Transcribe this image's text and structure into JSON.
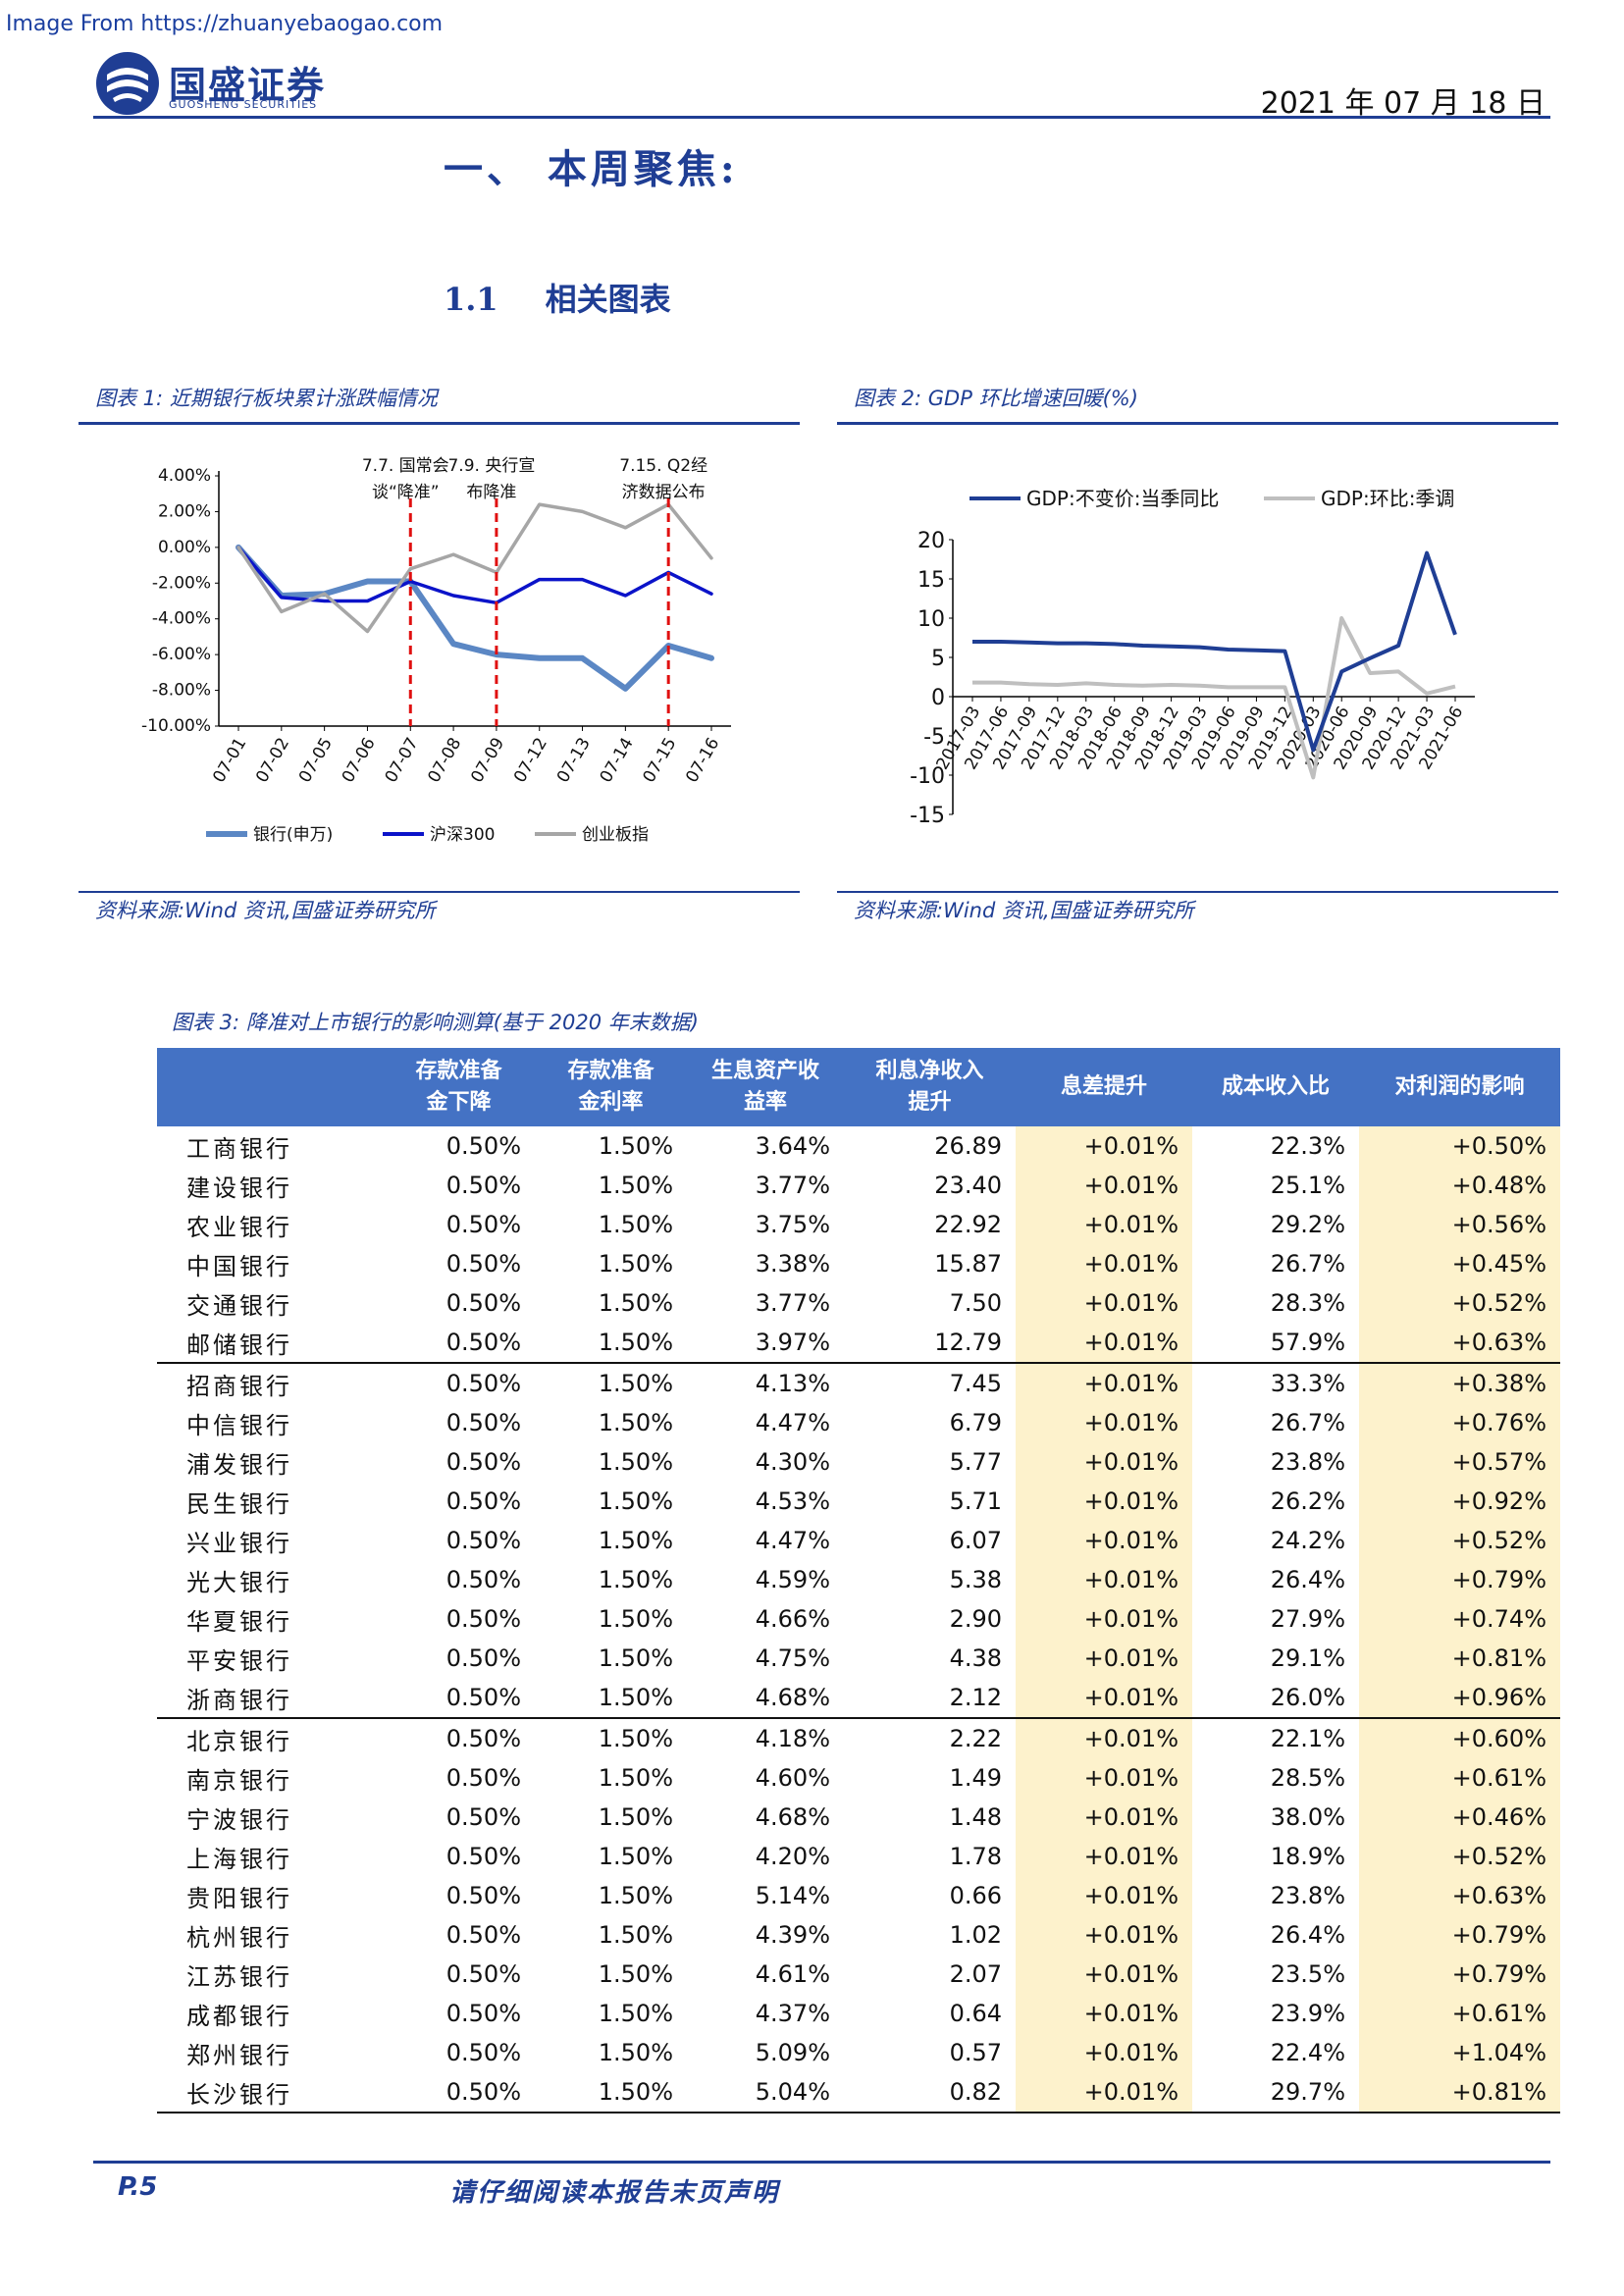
{
  "header": {
    "watermark": "Image From https://zhuanyebaogao.com",
    "brand_cn": "国盛证券",
    "brand_en": "GUOSHENG SECURITIES",
    "date": "2021 年 07 月 18 日"
  },
  "section": {
    "h1": "一、 本周聚焦:",
    "h2_num": "1.1",
    "h2_text": "相关图表"
  },
  "fig1": {
    "title": "图表 1:  近期银行板块累计涨跌幅情况",
    "source": "资料来源:Wind 资讯,国盛证券研究所",
    "chart_data": {
      "type": "line",
      "categories": [
        "07-01",
        "07-02",
        "07-05",
        "07-06",
        "07-07",
        "07-08",
        "07-09",
        "07-12",
        "07-13",
        "07-14",
        "07-15",
        "07-16"
      ],
      "series": [
        {
          "name": "银行(申万)",
          "color": "#5b87c4",
          "values": [
            0.0,
            -2.7,
            -2.6,
            -1.9,
            -1.9,
            -5.4,
            -6.0,
            -6.2,
            -6.2,
            -7.9,
            -5.5,
            -6.2
          ]
        },
        {
          "name": "沪深300",
          "color": "#0b13c9",
          "values": [
            0.0,
            -2.8,
            -3.0,
            -3.0,
            -1.9,
            -2.7,
            -3.1,
            -1.8,
            -1.8,
            -2.7,
            -1.4,
            -2.6
          ]
        },
        {
          "name": "创业板指",
          "color": "#a6a6a6",
          "values": [
            0.0,
            -3.6,
            -2.6,
            -4.7,
            -1.2,
            -0.4,
            -1.4,
            2.4,
            2.0,
            1.1,
            2.4,
            -0.6
          ]
        }
      ],
      "ylim": [
        -10,
        4
      ],
      "yticks": [
        "4.00%",
        "2.00%",
        "0.00%",
        "-2.00%",
        "-4.00%",
        "-6.00%",
        "-8.00%",
        "-10.00%"
      ],
      "ytick_values": [
        4,
        2,
        0,
        -2,
        -4,
        -6,
        -8,
        -10
      ],
      "events": [
        {
          "at": "07-07",
          "label1": "7.7. 国常会",
          "label2": "谈“降准”"
        },
        {
          "at": "07-09",
          "label1": "7.9. 央行宣",
          "label2": "布降准"
        },
        {
          "at": "07-15",
          "label1": "7.15. Q2经",
          "label2": "济数据公布"
        }
      ],
      "legend": "bottom",
      "grid": false
    }
  },
  "fig2": {
    "title": "图表 2:  GDP 环比增速回暖(%)",
    "source": "资料来源:Wind 资讯,国盛证券研究所",
    "chart_data": {
      "type": "line",
      "categories": [
        "2017-03",
        "2017-06",
        "2017-09",
        "2017-12",
        "2018-03",
        "2018-06",
        "2018-09",
        "2018-12",
        "2019-03",
        "2019-06",
        "2019-09",
        "2019-12",
        "2020-03",
        "2020-06",
        "2020-09",
        "2020-12",
        "2021-03",
        "2021-06"
      ],
      "series": [
        {
          "name": "GDP:不变价:当季同比",
          "color": "#1f3e94",
          "values": [
            7.0,
            7.0,
            6.9,
            6.8,
            6.8,
            6.7,
            6.5,
            6.4,
            6.3,
            6.0,
            5.9,
            5.8,
            -6.8,
            3.2,
            4.9,
            6.5,
            18.3,
            7.9
          ]
        },
        {
          "name": "GDP:环比:季调",
          "color": "#bfbfbf",
          "values": [
            1.8,
            1.8,
            1.6,
            1.5,
            1.7,
            1.5,
            1.4,
            1.5,
            1.4,
            1.2,
            1.2,
            1.2,
            -10.3,
            10.0,
            3.0,
            3.2,
            0.4,
            1.3
          ]
        }
      ],
      "ylim": [
        -15,
        20
      ],
      "yticks": [
        "20",
        "15",
        "10",
        "5",
        "0",
        "-5",
        "-10",
        "-15"
      ],
      "ytick_values": [
        20,
        15,
        10,
        5,
        0,
        -5,
        -10,
        -15
      ],
      "legend": "top",
      "grid": false
    }
  },
  "fig3": {
    "title": "图表 3:  降准对上市银行的影响测算(基于 2020 年末数据)",
    "headers": [
      "",
      "存款准备\n金下降",
      "存款准备\n金利率",
      "生息资产收\n益率",
      "利息净收入\n提升",
      "息差提升",
      "成本收入比",
      "对利润的影响"
    ],
    "rows": [
      [
        "工商银行",
        "0.50%",
        "1.50%",
        "3.64%",
        "26.89",
        "+0.01%",
        "22.3%",
        "+0.50%"
      ],
      [
        "建设银行",
        "0.50%",
        "1.50%",
        "3.77%",
        "23.40",
        "+0.01%",
        "25.1%",
        "+0.48%"
      ],
      [
        "农业银行",
        "0.50%",
        "1.50%",
        "3.75%",
        "22.92",
        "+0.01%",
        "29.2%",
        "+0.56%"
      ],
      [
        "中国银行",
        "0.50%",
        "1.50%",
        "3.38%",
        "15.87",
        "+0.01%",
        "26.7%",
        "+0.45%"
      ],
      [
        "交通银行",
        "0.50%",
        "1.50%",
        "3.77%",
        "7.50",
        "+0.01%",
        "28.3%",
        "+0.52%"
      ],
      [
        "邮储银行",
        "0.50%",
        "1.50%",
        "3.97%",
        "12.79",
        "+0.01%",
        "57.9%",
        "+0.63%"
      ],
      [
        "招商银行",
        "0.50%",
        "1.50%",
        "4.13%",
        "7.45",
        "+0.01%",
        "33.3%",
        "+0.38%"
      ],
      [
        "中信银行",
        "0.50%",
        "1.50%",
        "4.47%",
        "6.79",
        "+0.01%",
        "26.7%",
        "+0.76%"
      ],
      [
        "浦发银行",
        "0.50%",
        "1.50%",
        "4.30%",
        "5.77",
        "+0.01%",
        "23.8%",
        "+0.57%"
      ],
      [
        "民生银行",
        "0.50%",
        "1.50%",
        "4.53%",
        "5.71",
        "+0.01%",
        "26.2%",
        "+0.92%"
      ],
      [
        "兴业银行",
        "0.50%",
        "1.50%",
        "4.47%",
        "6.07",
        "+0.01%",
        "24.2%",
        "+0.52%"
      ],
      [
        "光大银行",
        "0.50%",
        "1.50%",
        "4.59%",
        "5.38",
        "+0.01%",
        "26.4%",
        "+0.79%"
      ],
      [
        "华夏银行",
        "0.50%",
        "1.50%",
        "4.66%",
        "2.90",
        "+0.01%",
        "27.9%",
        "+0.74%"
      ],
      [
        "平安银行",
        "0.50%",
        "1.50%",
        "4.75%",
        "4.38",
        "+0.01%",
        "29.1%",
        "+0.81%"
      ],
      [
        "浙商银行",
        "0.50%",
        "1.50%",
        "4.68%",
        "2.12",
        "+0.01%",
        "26.0%",
        "+0.96%"
      ],
      [
        "北京银行",
        "0.50%",
        "1.50%",
        "4.18%",
        "2.22",
        "+0.01%",
        "22.1%",
        "+0.60%"
      ],
      [
        "南京银行",
        "0.50%",
        "1.50%",
        "4.60%",
        "1.49",
        "+0.01%",
        "28.5%",
        "+0.61%"
      ],
      [
        "宁波银行",
        "0.50%",
        "1.50%",
        "4.68%",
        "1.48",
        "+0.01%",
        "38.0%",
        "+0.46%"
      ],
      [
        "上海银行",
        "0.50%",
        "1.50%",
        "4.20%",
        "1.78",
        "+0.01%",
        "18.9%",
        "+0.52%"
      ],
      [
        "贵阳银行",
        "0.50%",
        "1.50%",
        "5.14%",
        "0.66",
        "+0.01%",
        "23.8%",
        "+0.63%"
      ],
      [
        "杭州银行",
        "0.50%",
        "1.50%",
        "4.39%",
        "1.02",
        "+0.01%",
        "26.4%",
        "+0.79%"
      ],
      [
        "江苏银行",
        "0.50%",
        "1.50%",
        "4.61%",
        "2.07",
        "+0.01%",
        "23.5%",
        "+0.79%"
      ],
      [
        "成都银行",
        "0.50%",
        "1.50%",
        "4.37%",
        "0.64",
        "+0.01%",
        "23.9%",
        "+0.61%"
      ],
      [
        "郑州银行",
        "0.50%",
        "1.50%",
        "5.09%",
        "0.57",
        "+0.01%",
        "22.4%",
        "+1.04%"
      ],
      [
        "长沙银行",
        "0.50%",
        "1.50%",
        "5.04%",
        "0.82",
        "+0.01%",
        "29.7%",
        "+0.81%"
      ]
    ],
    "separator_before_rows": [
      6,
      15
    ],
    "highlight_cols": [
      5,
      7
    ],
    "highlight_color": "#fdf2cc",
    "header_color": "#4472c4"
  },
  "footer": {
    "page": "P.5",
    "disclaimer": "请仔细阅读本报告末页声明"
  }
}
